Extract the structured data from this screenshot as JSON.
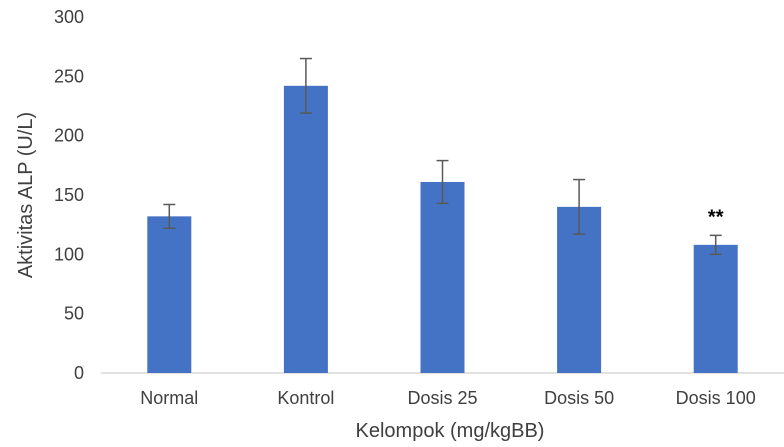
{
  "chart_data": {
    "type": "bar",
    "title": "",
    "xlabel": "Kelompok (mg/kgBB)",
    "ylabel": "Aktivitas ALP (U/L)",
    "ylim": [
      0,
      300
    ],
    "yticks": [
      "0",
      "50",
      "100",
      "150",
      "200",
      "250",
      "300"
    ],
    "grid": false,
    "legend": "none",
    "categories": [
      "Normal",
      "Kontrol",
      "Dosis 25",
      "Dosis 50",
      "Dosis 100"
    ],
    "values": [
      132,
      242,
      161,
      140,
      108
    ],
    "error": [
      10,
      23,
      18,
      23,
      8
    ],
    "annotations": [
      {
        "category": "Dosis 100",
        "text": "**"
      }
    ],
    "colors": {
      "bar": "#4472C4",
      "error_bar": "#595959",
      "axis": "#D9D9D9",
      "text": "#404040"
    }
  }
}
